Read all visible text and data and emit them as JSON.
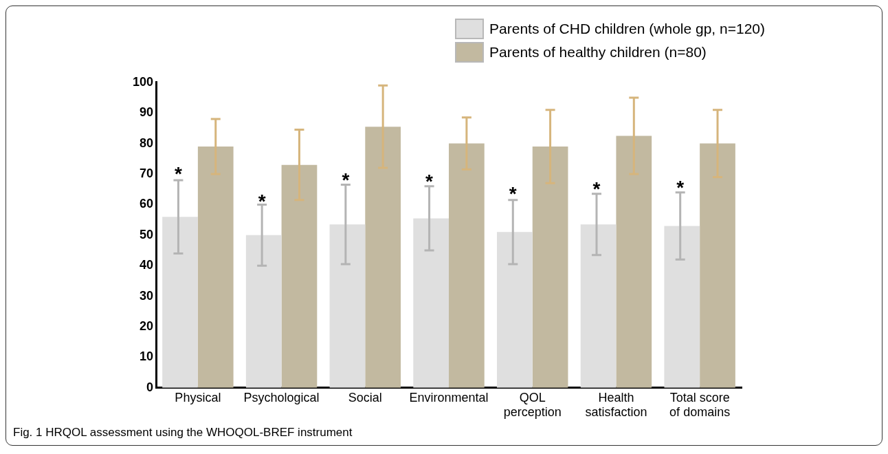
{
  "chart_data": {
    "type": "bar",
    "categories": [
      "Physical",
      "Psychological",
      "Social",
      "Environmental",
      "QOL perception",
      "Health satisfaction",
      "Total score of domains"
    ],
    "series": [
      {
        "name": "Parents of CHD children (whole gp, n=120)",
        "color": "#dfdfdf",
        "values": [
          56,
          50,
          53.5,
          55.5,
          51,
          53.5,
          53
        ],
        "errors": [
          12,
          10,
          13,
          10.5,
          10.5,
          10,
          11
        ]
      },
      {
        "name": "Parents of healthy children (n=80)",
        "color": "#c2b9a0",
        "values": [
          79,
          73,
          85.5,
          80,
          79,
          82.5,
          80
        ],
        "errors": [
          9,
          11.5,
          13.5,
          8.5,
          12,
          12.5,
          11
        ]
      }
    ],
    "ylim": [
      0,
      100
    ],
    "yticks": [
      0,
      10,
      20,
      30,
      40,
      50,
      60,
      70,
      80,
      90,
      100
    ],
    "grid": false,
    "legend": "top right",
    "annotations": [
      {
        "text": "*",
        "x": "Physical",
        "y": 71
      },
      {
        "text": "*",
        "x": "Psychological",
        "y": 62
      },
      {
        "text": "*",
        "x": "Social",
        "y": 69
      },
      {
        "text": "*",
        "x": "Environmental",
        "y": 68.5
      },
      {
        "text": "*",
        "x": "QOL perception",
        "y": 64.5
      },
      {
        "text": "*",
        "x": "Health satisfaction",
        "y": 66
      },
      {
        "text": "*",
        "x": "Total score of domains",
        "y": 66.5
      },
      "Fig. 1 HRQOL assessment using the WHOQOL-BREF instrument"
    ]
  }
}
